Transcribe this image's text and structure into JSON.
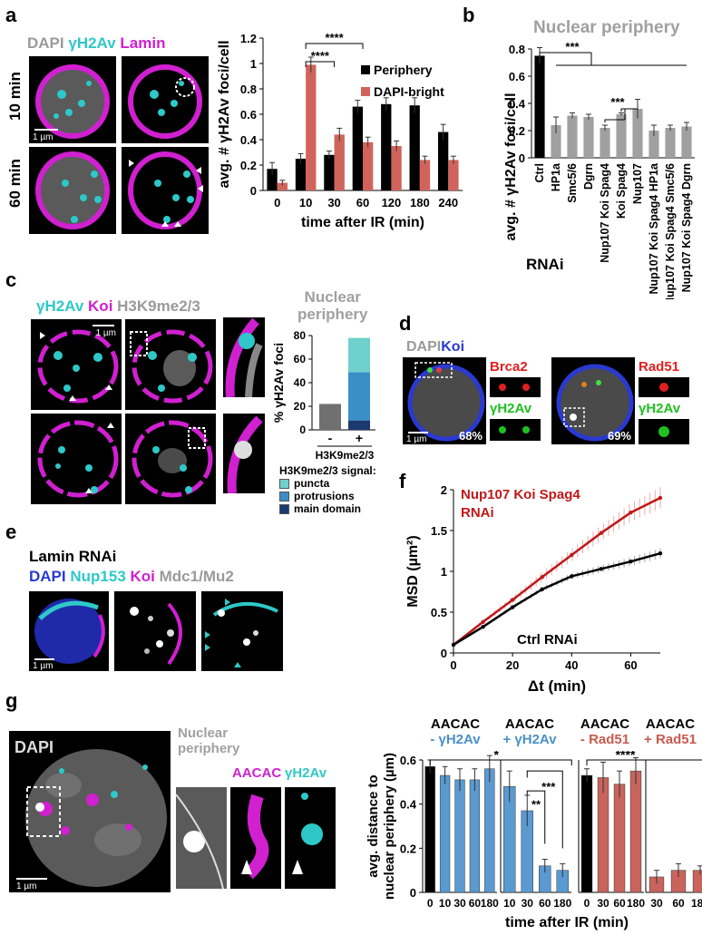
{
  "panels": {
    "a": {
      "letter": "a",
      "channels": [
        {
          "text": "DAPI",
          "color": "#9a9a9a"
        },
        {
          "text": "γH2Av",
          "color": "#2ec8c8"
        },
        {
          "text": "Lamin",
          "color": "#d020d0"
        }
      ],
      "row_labels": [
        "10 min",
        "60 min"
      ],
      "scalebar": "1 µm"
    },
    "b": {
      "letter": "b",
      "title": "Nuclear periphery",
      "xlabel": "RNAi"
    },
    "c": {
      "letter": "c",
      "channels": [
        {
          "text": "γH2Av",
          "color": "#2ec8c8"
        },
        {
          "text": "Koi",
          "color": "#d020d0"
        },
        {
          "text": "H3K9me2/3",
          "color": "#9a9a9a"
        }
      ],
      "scalebar": "1 µm",
      "chart_title": [
        "Nuclear",
        "periphery"
      ],
      "legend_title": "H3K9me2/3 signal:",
      "legend": [
        {
          "text": "puncta",
          "color": "#6fd0cc"
        },
        {
          "text": "protrusions",
          "color": "#3a8fc8"
        },
        {
          "text": "main domain",
          "color": "#1a3a70"
        }
      ]
    },
    "d": {
      "letter": "d",
      "channels": [
        {
          "text": "DAPI",
          "color": "#9a9a9a"
        },
        {
          "text": "Koi",
          "color": "#2a3ad0"
        }
      ],
      "scalebar": "1 µm",
      "left": {
        "label_top": "Brca2",
        "label_top_color": "#e02020",
        "label_bottom": "γH2Av",
        "label_bottom_color": "#20c020",
        "percent": "68%"
      },
      "right": {
        "label_top": "Rad51",
        "label_top_color": "#e02020",
        "label_bottom": "γH2Av",
        "label_bottom_color": "#20c020",
        "percent": "69%"
      }
    },
    "e": {
      "letter": "e",
      "title": "Lamin RNAi",
      "channels": [
        {
          "text": "DAPI",
          "color": "#2a3ad0"
        },
        {
          "text": "Nup153",
          "color": "#2ec8c8"
        },
        {
          "text": "Koi",
          "color": "#d020d0"
        },
        {
          "text": "Mdc1/Mu2",
          "color": "#9a9a9a"
        }
      ],
      "scalebar": "1 µm"
    },
    "f": {
      "letter": "f",
      "label_red": [
        "Nup107 Koi Spag4",
        "RNAi"
      ],
      "label_black": "Ctrl RNAi"
    },
    "g": {
      "letter": "g",
      "dapi": "DAPI",
      "periphery": [
        "Nuclear",
        "periphery"
      ],
      "aacac": "AACAC",
      "gh2av": "γH2Av",
      "scalebar": "1 µm",
      "group_titles": [
        {
          "top": "AACAC",
          "bottom": "- γH2Av",
          "color": "#4a90c8"
        },
        {
          "top": "AACAC",
          "bottom": "+ γH2Av",
          "color": "#4a90c8"
        },
        {
          "top": "AACAC",
          "bottom": "- Rad51",
          "color": "#c85a50"
        },
        {
          "top": "AACAC",
          "bottom": "+ Rad51",
          "color": "#c85a50"
        }
      ]
    }
  },
  "chart_data": [
    {
      "id": "a",
      "type": "bar",
      "categories": [
        "0",
        "10",
        "30",
        "60",
        "120",
        "180",
        "240"
      ],
      "series": [
        {
          "name": "Periphery",
          "color": "#000000",
          "values": [
            0.17,
            0.25,
            0.28,
            0.66,
            0.68,
            0.67,
            0.46
          ],
          "err": [
            0.05,
            0.04,
            0.03,
            0.05,
            0.05,
            0.06,
            0.06
          ]
        },
        {
          "name": "DAPI-bright",
          "color": "#d0645c",
          "values": [
            0.06,
            0.99,
            0.44,
            0.38,
            0.35,
            0.24,
            0.24
          ],
          "err": [
            0.02,
            0.06,
            0.05,
            0.04,
            0.04,
            0.03,
            0.03
          ]
        }
      ],
      "xlabel": "time after IR (min)",
      "ylabel": "avg. # γH2Av foci/cell",
      "ylim": [
        0,
        1.2
      ],
      "yticks": [
        "0",
        "0.2",
        "0.4",
        "0.6",
        "0.8",
        "1",
        "1.2"
      ],
      "sig": [
        "****",
        "****"
      ],
      "legend_placement": "top-right"
    },
    {
      "id": "b",
      "type": "bar",
      "categories": [
        "Ctrl",
        "HP1a",
        "Smc5/6",
        "Dgrn",
        "Nup107 Koi Spag4",
        "Koi Spag4",
        "Nup107",
        "Nup107 Koi Spag4 HP1a",
        "Nup107 Koi Spag4 Smc5/6",
        "Nup107 Koi Spag4 Dgrn"
      ],
      "values": [
        0.75,
        0.24,
        0.31,
        0.3,
        0.22,
        0.32,
        0.36,
        0.2,
        0.22,
        0.23
      ],
      "err": [
        0.06,
        0.06,
        0.02,
        0.02,
        0.02,
        0.01,
        0.07,
        0.04,
        0.02,
        0.03
      ],
      "colors": [
        "#000000",
        "#a0a0a0",
        "#a0a0a0",
        "#a0a0a0",
        "#a0a0a0",
        "#a0a0a0",
        "#a0a0a0",
        "#a0a0a0",
        "#a0a0a0",
        "#a0a0a0"
      ],
      "ylabel": "avg. # γH2Av foci/cell",
      "ylim": [
        0,
        0.8
      ],
      "yticks": [
        "0",
        "0.2",
        "0.4",
        "0.6",
        "0.8"
      ],
      "sig": [
        "***",
        "***"
      ]
    },
    {
      "id": "c",
      "type": "bar",
      "categories": [
        "-",
        "+"
      ],
      "ylabel": "% γH2Av foci",
      "xlabel": "H3K9me2/3",
      "ylim": [
        0,
        80
      ],
      "yticks": [
        "0",
        "20",
        "40",
        "60",
        "80"
      ],
      "minus": {
        "value": 22,
        "color": "#707070"
      },
      "plus_stack": [
        {
          "value": 8,
          "color": "#1a3a70"
        },
        {
          "value": 41,
          "color": "#3a8fc8"
        },
        {
          "value": 29,
          "color": "#6fd0cc"
        }
      ]
    },
    {
      "id": "f",
      "type": "line",
      "xlabel": "Δt (min)",
      "ylabel": "MSD (µm²)",
      "xlim": [
        0,
        70
      ],
      "ylim": [
        0,
        2
      ],
      "xticks": [
        "0",
        "20",
        "40",
        "60"
      ],
      "yticks": [
        "0",
        "0.5",
        "1",
        "1.5",
        "2"
      ],
      "series": [
        {
          "name": "Nup107 Koi Spag4 RNAi",
          "color": "#c01818",
          "x": [
            0,
            10,
            20,
            30,
            40,
            50,
            60,
            70
          ],
          "y": [
            0.1,
            0.38,
            0.65,
            0.93,
            1.2,
            1.47,
            1.72,
            1.9
          ]
        },
        {
          "name": "Ctrl RNAi",
          "color": "#000000",
          "x": [
            0,
            10,
            20,
            30,
            40,
            50,
            60,
            70
          ],
          "y": [
            0.1,
            0.32,
            0.56,
            0.78,
            0.94,
            1.03,
            1.12,
            1.22
          ]
        }
      ]
    },
    {
      "id": "g",
      "type": "bar",
      "ylabel": "avg. distance to nuclear periphery (µm)",
      "xlabel": "time after IR (min)",
      "ylim": [
        0,
        0.6
      ],
      "yticks": [
        "0",
        "0.2",
        "0.4",
        "0.6"
      ],
      "groups": [
        {
          "categories": [
            "0",
            "10",
            "30",
            "60",
            "180"
          ],
          "values": [
            0.57,
            0.53,
            0.51,
            0.51,
            0.56
          ],
          "err": [
            0.03,
            0.04,
            0.05,
            0.05,
            0.06
          ],
          "colors": [
            "#000000",
            "#5a9ad0",
            "#5a9ad0",
            "#5a9ad0",
            "#5a9ad0"
          ]
        },
        {
          "categories": [
            "10",
            "30",
            "60",
            "180"
          ],
          "values": [
            0.48,
            0.37,
            0.12,
            0.1
          ],
          "err": [
            0.07,
            0.07,
            0.03,
            0.03
          ],
          "colors": [
            "#5a9ad0",
            "#5a9ad0",
            "#5a9ad0",
            "#5a9ad0"
          ]
        },
        {
          "categories": [
            "0",
            "30",
            "60",
            "180"
          ],
          "values": [
            0.53,
            0.52,
            0.49,
            0.55
          ],
          "err": [
            0.03,
            0.07,
            0.06,
            0.06
          ],
          "colors": [
            "#000000",
            "#c8645c",
            "#c8645c",
            "#c8645c"
          ]
        },
        {
          "categories": [
            "30",
            "60",
            "180"
          ],
          "values": [
            0.07,
            0.1,
            0.1
          ],
          "err": [
            0.03,
            0.03,
            0.02
          ],
          "colors": [
            "#c8645c",
            "#c8645c",
            "#c8645c"
          ]
        }
      ],
      "sig": [
        "*",
        "***",
        "**",
        "****"
      ]
    }
  ]
}
